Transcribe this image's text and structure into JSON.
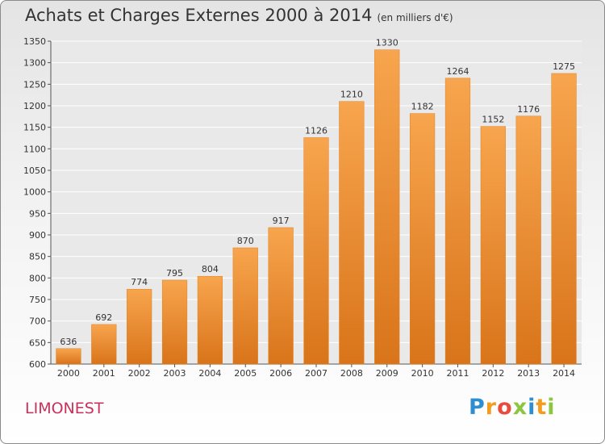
{
  "chart_data": {
    "type": "bar",
    "title": "Achats et Charges Externes 2000 à 2014",
    "subtitle": "(en milliers d'€)",
    "categories": [
      "2000",
      "2001",
      "2002",
      "2003",
      "2004",
      "2005",
      "2006",
      "2007",
      "2008",
      "2009",
      "2010",
      "2011",
      "2012",
      "2013",
      "2014"
    ],
    "values": [
      636,
      692,
      774,
      795,
      804,
      870,
      917,
      1126,
      1210,
      1330,
      1182,
      1264,
      1152,
      1176,
      1275
    ],
    "ylim": [
      600,
      1350
    ],
    "yticks": [
      600,
      650,
      700,
      750,
      800,
      850,
      900,
      950,
      1000,
      1050,
      1100,
      1150,
      1200,
      1250,
      1300,
      1350
    ],
    "grid": true,
    "bar_color": "#f08a30"
  },
  "footer": {
    "place": "LIMONEST",
    "logo_letters": [
      "P",
      "r",
      "o",
      "x",
      "i",
      "t",
      "i"
    ],
    "logo_colors": [
      "#2e8fd0",
      "#f39c1e",
      "#e84c3d",
      "#8cc63f",
      "#2e8fd0",
      "#f39c1e",
      "#8cc63f"
    ]
  }
}
